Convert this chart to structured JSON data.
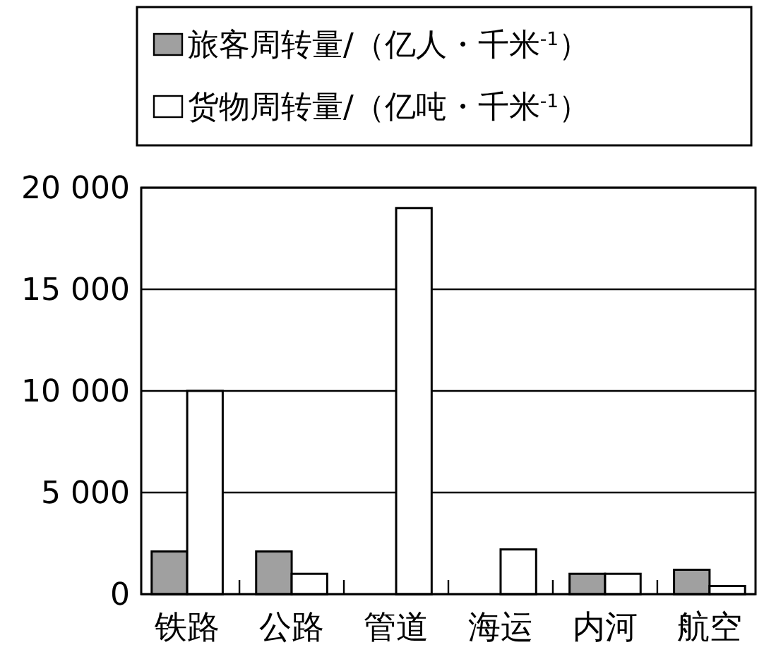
{
  "chart_data": {
    "type": "bar",
    "categories": [
      "铁路",
      "公路",
      "管道",
      "海运",
      "内河",
      "航空"
    ],
    "series": [
      {
        "name": "旅客周转量/（亿人・千米$^{-1}$）",
        "color": "#a0a0a0",
        "values": [
          2100,
          2100,
          0,
          0,
          1000,
          1200
        ]
      },
      {
        "name": "货物周转量/（亿吨・千米$^{-1}$）",
        "color": "#ffffff",
        "values": [
          10000,
          1000,
          19000,
          2200,
          1000,
          400
        ]
      }
    ],
    "ylim": [
      0,
      20000
    ],
    "yticks": [
      0,
      {
        "value": 5000,
        "label": "5 000"
      },
      {
        "value": 10000,
        "label": "10 000"
      },
      {
        "value": 15000,
        "label": "15 000"
      },
      {
        "value": 20000,
        "label": "20 000"
      }
    ],
    "grid": "y",
    "legend": "top"
  }
}
